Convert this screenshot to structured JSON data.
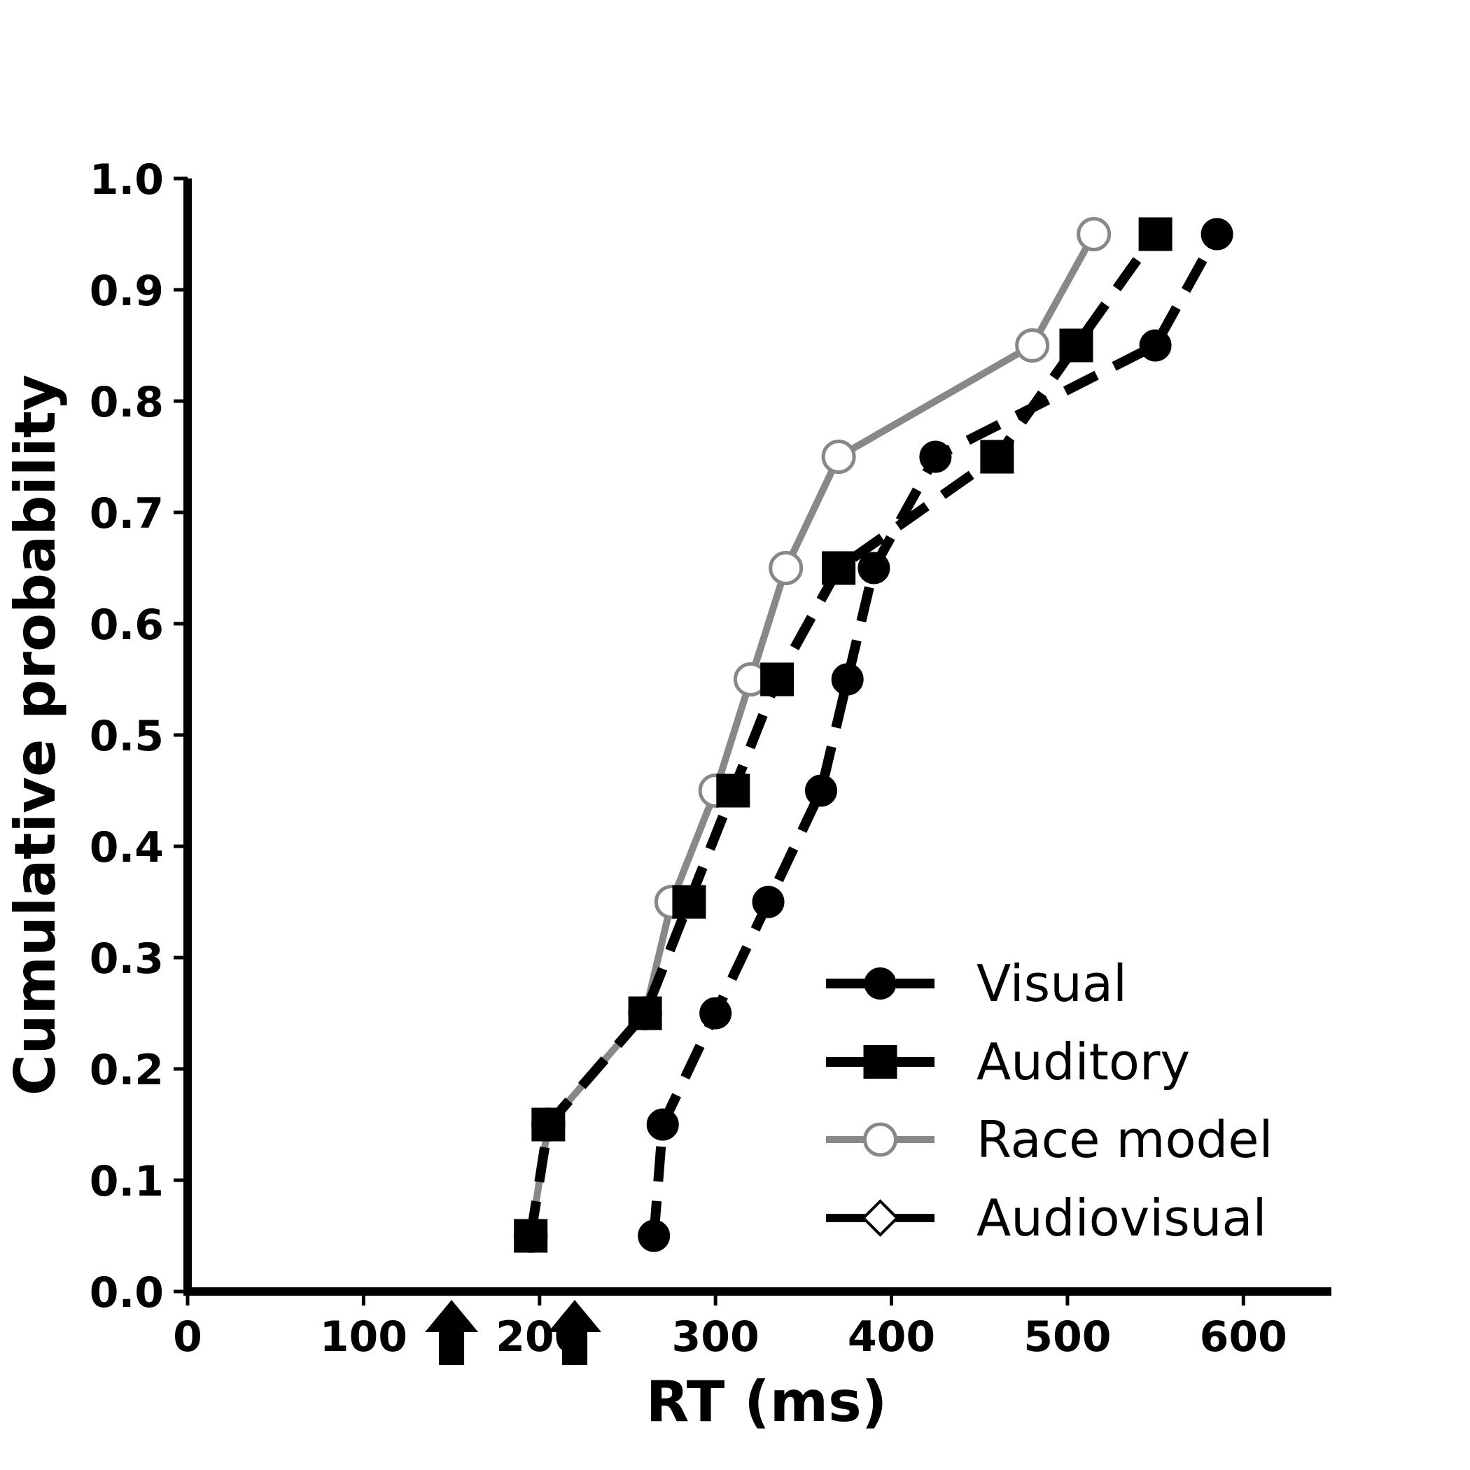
{
  "chart_data": {
    "type": "line",
    "title": "",
    "xlabel": "RT (ms)",
    "ylabel": "Cumulative probability",
    "xlim": [
      0,
      650
    ],
    "ylim": [
      0,
      1.0
    ],
    "xticks": [
      0,
      100,
      200,
      300,
      400,
      500,
      600
    ],
    "yticks": [
      0.0,
      0.1,
      0.2,
      0.3,
      0.4,
      0.5,
      0.6,
      0.7,
      0.8,
      0.9,
      1.0
    ],
    "xtick_labels": [
      "0",
      "100",
      "200",
      "300",
      "400",
      "500",
      "600"
    ],
    "ytick_labels": [
      "0.0",
      "0.1",
      "0.2",
      "0.3",
      "0.4",
      "0.5",
      "0.6",
      "0.7",
      "0.8",
      "0.9",
      "1.0"
    ],
    "grid": false,
    "legend_position": "bottom-right",
    "series": [
      {
        "name": "Visual",
        "line_color": "#000000",
        "line_style": "dashed",
        "marker": "circle-filled",
        "points": [
          [
            265,
            0.05
          ],
          [
            270,
            0.15
          ],
          [
            300,
            0.25
          ],
          [
            330,
            0.35
          ],
          [
            360,
            0.45
          ],
          [
            375,
            0.55
          ],
          [
            390,
            0.65
          ],
          [
            425,
            0.75
          ],
          [
            550,
            0.85
          ],
          [
            585,
            0.95
          ]
        ]
      },
      {
        "name": "Auditory",
        "line_color": "#000000",
        "line_style": "dashed",
        "marker": "square-filled",
        "points": [
          [
            195,
            0.05
          ],
          [
            205,
            0.15
          ],
          [
            260,
            0.25
          ],
          [
            285,
            0.35
          ],
          [
            310,
            0.45
          ],
          [
            335,
            0.55
          ],
          [
            370,
            0.65
          ],
          [
            460,
            0.75
          ],
          [
            505,
            0.85
          ],
          [
            550,
            0.95
          ]
        ]
      },
      {
        "name": "Race model",
        "line_color": "#888888",
        "line_style": "solid",
        "marker": "circle-open",
        "points": [
          [
            195,
            0.05
          ],
          [
            205,
            0.15
          ],
          [
            260,
            0.25
          ],
          [
            275,
            0.35
          ],
          [
            300,
            0.45
          ],
          [
            320,
            0.55
          ],
          [
            340,
            0.65
          ],
          [
            370,
            0.75
          ],
          [
            480,
            0.85
          ],
          [
            515,
            0.95
          ]
        ]
      },
      {
        "name": "Audiovisual",
        "line_color": "#000000",
        "line_style": "solid",
        "marker": "diamond-open",
        "points": []
      }
    ],
    "annotations": [
      {
        "type": "arrow-up",
        "x": 150,
        "color": "#000000"
      },
      {
        "type": "arrow-up",
        "x": 220,
        "color": "#000000"
      }
    ]
  }
}
